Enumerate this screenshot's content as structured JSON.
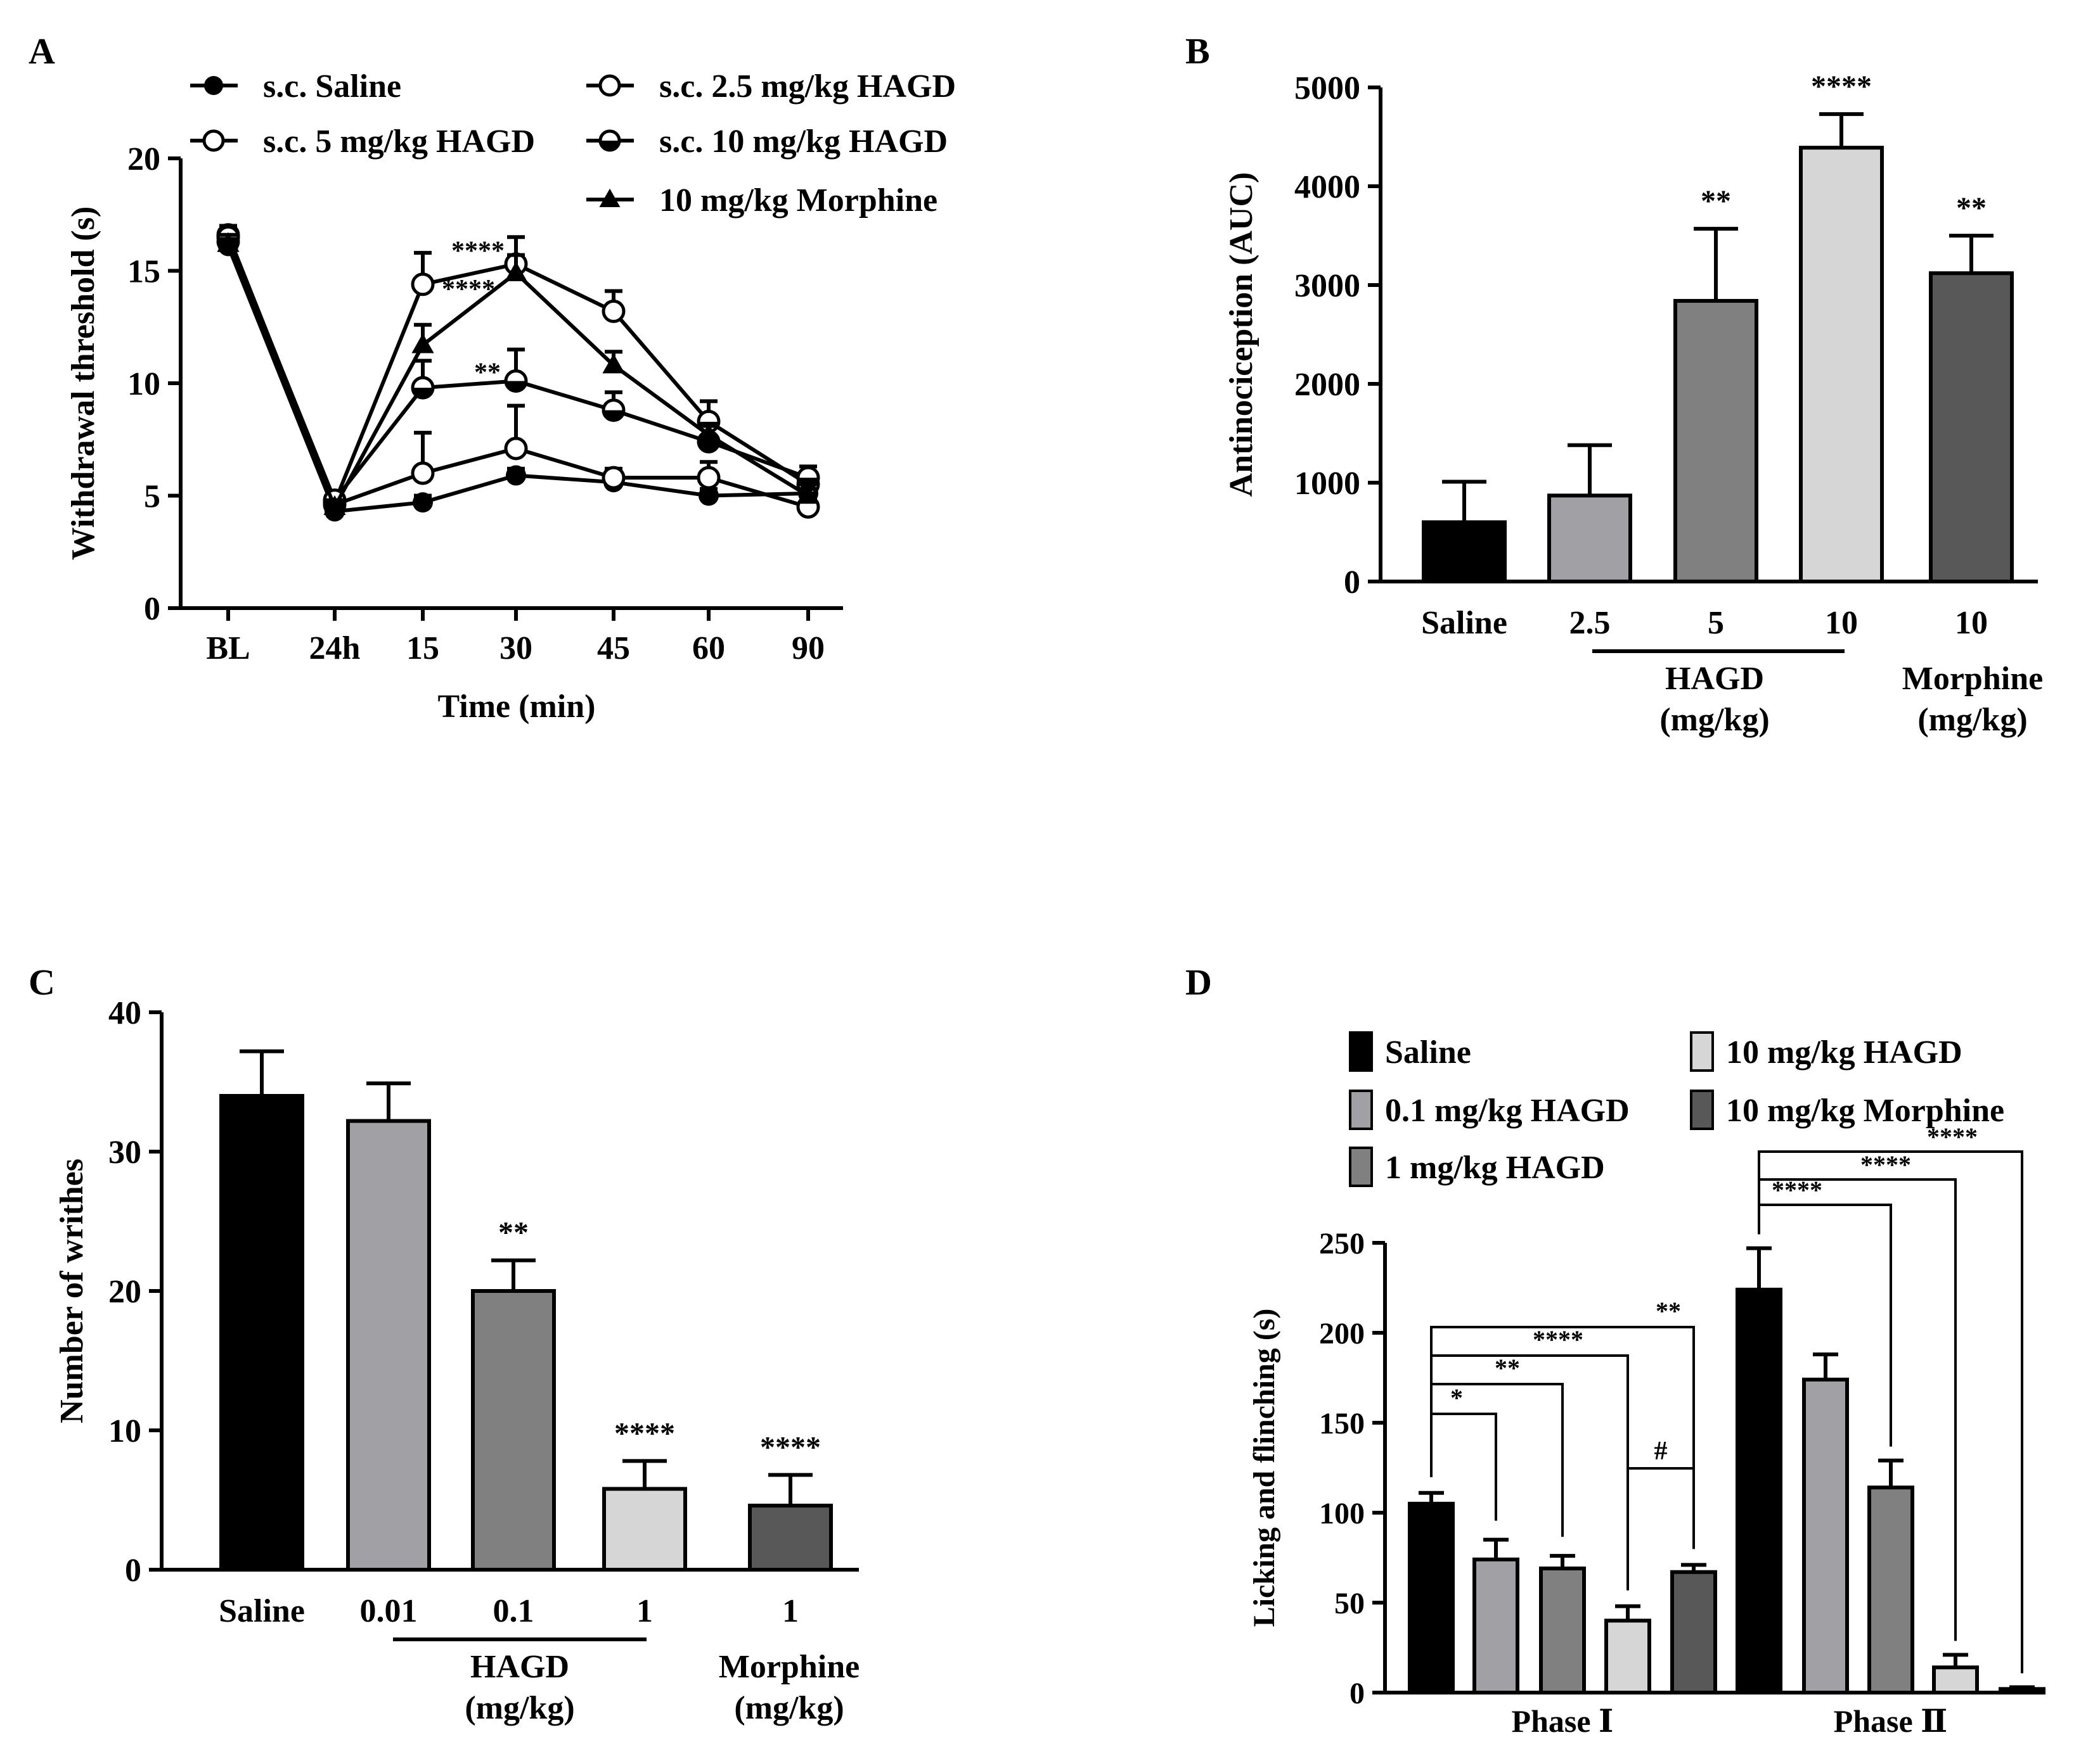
{
  "colors": {
    "saline": "#000000",
    "hagd_2_5": "#a1a1a5",
    "hagd_5": "#808080",
    "hagd_10": "#d6d6d6",
    "morphine": "#585858",
    "d_saline": "#000000",
    "d_0_1": "#a1a1a5",
    "d_1": "#808080",
    "d_10": "#d6d6d6",
    "d_morphine": "#585858"
  },
  "panels": {
    "A": {
      "letter": "A"
    },
    "B": {
      "letter": "B"
    },
    "C": {
      "letter": "C"
    },
    "D": {
      "letter": "D"
    }
  },
  "chart_data": [
    {
      "panel": "A",
      "type": "line",
      "xlabel": "Time (min)",
      "ylabel": "Withdrawal threshold (s)",
      "categories": [
        "BL",
        "24h",
        "15",
        "30",
        "45",
        "60",
        "90"
      ],
      "ylim": [
        0,
        20
      ],
      "yticks": [
        0,
        5,
        10,
        15,
        20
      ],
      "legend_position": "top",
      "series": [
        {
          "name": "s.c. Saline",
          "marker": "filled-circle",
          "values": [
            16.1,
            4.3,
            4.7,
            5.9,
            5.6,
            5.0,
            5.1
          ],
          "err": [
            0.3,
            0.2,
            0.3,
            0.3,
            0.3,
            0.3,
            0.3
          ]
        },
        {
          "name": "s.c. 2.5 mg/kg HAGD",
          "marker": "open-circle",
          "values": [
            16.3,
            4.6,
            6.0,
            7.1,
            5.8,
            5.8,
            4.5
          ],
          "err": [
            0.3,
            0.3,
            1.8,
            1.9,
            0.4,
            0.7,
            0.3
          ]
        },
        {
          "name": "s.c. 5 mg/kg HAGD",
          "marker": "open-circle",
          "values": [
            16.6,
            4.7,
            14.4,
            15.3,
            13.2,
            8.3,
            5.5
          ],
          "err": [
            0.4,
            0.3,
            1.4,
            1.2,
            0.9,
            0.9,
            0.5
          ]
        },
        {
          "name": "s.c. 10 mg/kg HAGD",
          "marker": "half-circle",
          "values": [
            16.5,
            4.8,
            9.8,
            10.1,
            8.8,
            7.4,
            5.8
          ],
          "err": [
            0.4,
            0.3,
            1.2,
            1.4,
            0.8,
            0.7,
            0.5
          ]
        },
        {
          "name": "10 mg/kg Morphine",
          "marker": "triangle",
          "values": [
            16.2,
            4.5,
            11.7,
            14.9,
            10.8,
            7.7,
            5.0
          ],
          "err": [
            0.4,
            0.3,
            0.9,
            0.8,
            0.6,
            0.5,
            0.3
          ]
        }
      ],
      "annotations": [
        {
          "text": "****",
          "x": "30",
          "y": 15.9
        },
        {
          "text": "****",
          "x": "30",
          "y": 14.2
        },
        {
          "text": "**",
          "x": "30",
          "y": 10.5
        }
      ]
    },
    {
      "panel": "B",
      "type": "bar",
      "ylabel": "Antinociception (AUC)",
      "categories": [
        "Saline",
        "2.5",
        "5",
        "10",
        "10"
      ],
      "values": [
        600,
        870,
        2840,
        4390,
        3120
      ],
      "err": [
        410,
        510,
        730,
        340,
        380
      ],
      "significance": [
        "",
        "",
        "**",
        "****",
        "**"
      ],
      "ylim": [
        0,
        5000
      ],
      "yticks": [
        0,
        1000,
        2000,
        3000,
        4000,
        5000
      ],
      "groups": [
        {
          "label_line1": "HAGD",
          "label_line2": "(mg/kg)"
        },
        {
          "label_line1": "Morphine",
          "label_line2": "(mg/kg)"
        }
      ]
    },
    {
      "panel": "C",
      "type": "bar",
      "ylabel": "Number of writhes",
      "categories": [
        "Saline",
        "0.01",
        "0.1",
        "1",
        "1"
      ],
      "values": [
        34.0,
        32.2,
        20.0,
        5.8,
        4.6
      ],
      "err": [
        3.2,
        2.7,
        2.2,
        2.0,
        2.2
      ],
      "significance": [
        "",
        "",
        "**",
        "****",
        "****"
      ],
      "ylim": [
        0,
        40
      ],
      "yticks": [
        0,
        10,
        20,
        30,
        40
      ],
      "groups": [
        {
          "label_line1": "HAGD",
          "label_line2": "(mg/kg)"
        },
        {
          "label_line1": "Morphine",
          "label_line2": "(mg/kg)"
        }
      ]
    },
    {
      "panel": "D",
      "type": "bar",
      "ylabel": "Licking and flinching (s)",
      "categories": [
        "Phase Ⅰ",
        "Phase Ⅱ"
      ],
      "ylim": [
        0,
        250
      ],
      "yticks": [
        0,
        50,
        100,
        150,
        200,
        250
      ],
      "legend_position": "top",
      "series": [
        {
          "name": "Saline",
          "values": [
            105,
            224
          ],
          "err": [
            6,
            23
          ]
        },
        {
          "name": "0.1 mg/kg HAGD",
          "values": [
            74,
            174
          ],
          "err": [
            11,
            14
          ]
        },
        {
          "name": "1 mg/kg HAGD",
          "values": [
            69,
            114
          ],
          "err": [
            7,
            15
          ]
        },
        {
          "name": "10 mg/kg HAGD",
          "values": [
            40,
            14
          ],
          "err": [
            8,
            7
          ]
        },
        {
          "name": "10 mg/kg Morphine",
          "values": [
            67,
            2
          ],
          "err": [
            4,
            1
          ]
        }
      ],
      "comparisons": [
        {
          "label": "*",
          "phase": 0,
          "from": 0,
          "to": 1
        },
        {
          "label": "**",
          "phase": 0,
          "from": 0,
          "to": 2
        },
        {
          "label": "****",
          "phase": 0,
          "from": 0,
          "to": 3
        },
        {
          "label": "**",
          "phase": 0,
          "from": 0,
          "to": 4
        },
        {
          "label": "#",
          "phase": 0,
          "from": 3,
          "to": 4
        },
        {
          "label": "****",
          "phase": 1,
          "from": 0,
          "to": 2
        },
        {
          "label": "****",
          "phase": 1,
          "from": 0,
          "to": 3
        },
        {
          "label": "****",
          "phase": 1,
          "from": 0,
          "to": 4
        }
      ]
    }
  ]
}
